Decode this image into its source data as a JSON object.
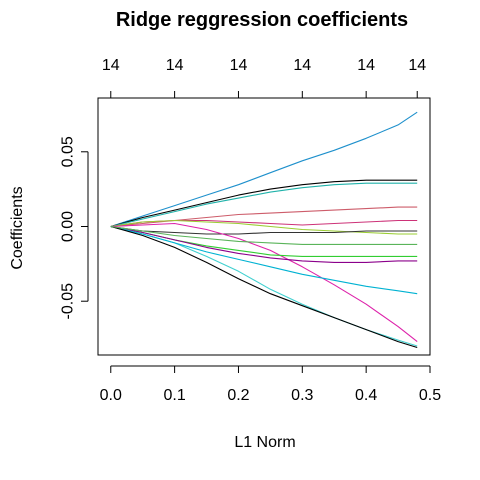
{
  "chart_data": {
    "type": "line",
    "title": "Ridge reggression coefficients",
    "xlabel": "L1 Norm",
    "ylabel": "Coefficients",
    "xlim": [
      -0.02,
      0.5
    ],
    "ylim": [
      -0.086,
      0.086
    ],
    "x_ticks": [
      "0.0",
      "0.1",
      "0.2",
      "0.3",
      "0.4",
      "0.5"
    ],
    "x_tick_values": [
      0.0,
      0.1,
      0.2,
      0.3,
      0.4,
      0.5
    ],
    "y_ticks": [
      "-0.05",
      "0.00",
      "0.05"
    ],
    "y_tick_values": [
      -0.05,
      0.0,
      0.05
    ],
    "top_axis_ticks": [
      "14",
      "14",
      "14",
      "14",
      "14",
      "14"
    ],
    "top_axis_tick_values": [
      0.0,
      0.1,
      0.2,
      0.3,
      0.4,
      0.48
    ],
    "grid": false,
    "legend": false,
    "x": [
      0.0,
      0.05,
      0.1,
      0.15,
      0.2,
      0.25,
      0.3,
      0.35,
      0.4,
      0.45,
      0.48
    ],
    "series": [
      {
        "color": "#1E90CC",
        "values": [
          0.0,
          0.007,
          0.014,
          0.021,
          0.028,
          0.036,
          0.044,
          0.051,
          0.059,
          0.068,
          0.0765
        ]
      },
      {
        "color": "#000000",
        "values": [
          0.0,
          0.006,
          0.011,
          0.016,
          0.021,
          0.025,
          0.028,
          0.03,
          0.031,
          0.031,
          0.031
        ]
      },
      {
        "color": "#20B2AA",
        "values": [
          0.0,
          0.005,
          0.01,
          0.015,
          0.019,
          0.023,
          0.026,
          0.028,
          0.029,
          0.029,
          0.029
        ]
      },
      {
        "color": "#CD5C6A",
        "values": [
          0.0,
          0.002,
          0.004,
          0.006,
          0.008,
          0.009,
          0.01,
          0.011,
          0.012,
          0.013,
          0.013
        ]
      },
      {
        "color": "#CD3278",
        "values": [
          0.0,
          0.003,
          0.004,
          0.004,
          0.003,
          0.002,
          0.001,
          0.002,
          0.003,
          0.004,
          0.004
        ]
      },
      {
        "color": "#9ACD32",
        "values": [
          0.0,
          0.003,
          0.004,
          0.003,
          0.002,
          0.0,
          -0.002,
          -0.003,
          -0.004,
          -0.005,
          -0.005
        ]
      },
      {
        "color": "#333333",
        "values": [
          0.0,
          -0.003,
          -0.004,
          -0.005,
          -0.005,
          -0.004,
          -0.004,
          -0.004,
          -0.003,
          -0.003,
          -0.003
        ]
      },
      {
        "color": "#DD22AA",
        "values": [
          0.0,
          0.001,
          0.002,
          -0.002,
          -0.008,
          -0.016,
          -0.027,
          -0.039,
          -0.052,
          -0.067,
          -0.077
        ]
      },
      {
        "color": "#32CD32",
        "values": [
          0.0,
          -0.004,
          -0.009,
          -0.013,
          -0.016,
          -0.019,
          -0.02,
          -0.02,
          -0.02,
          -0.02,
          -0.02
        ]
      },
      {
        "color": "#8B008B",
        "values": [
          0.0,
          -0.004,
          -0.009,
          -0.014,
          -0.018,
          -0.021,
          -0.023,
          -0.024,
          -0.024,
          -0.023,
          -0.023
        ]
      },
      {
        "color": "#40D0D0",
        "values": [
          0.0,
          -0.005,
          -0.011,
          -0.02,
          -0.03,
          -0.042,
          -0.052,
          -0.061,
          -0.069,
          -0.076,
          -0.08
        ]
      },
      {
        "color": "#00B2D2",
        "values": [
          0.0,
          -0.005,
          -0.011,
          -0.017,
          -0.022,
          -0.027,
          -0.032,
          -0.036,
          -0.04,
          -0.043,
          -0.045
        ]
      },
      {
        "color": "#000000",
        "values": [
          0.0,
          -0.006,
          -0.014,
          -0.024,
          -0.035,
          -0.045,
          -0.053,
          -0.061,
          -0.069,
          -0.077,
          -0.081
        ]
      },
      {
        "color": "#5AB45A",
        "values": [
          0.0,
          -0.003,
          -0.006,
          -0.008,
          -0.01,
          -0.011,
          -0.012,
          -0.012,
          -0.012,
          -0.012,
          -0.012
        ]
      }
    ]
  }
}
